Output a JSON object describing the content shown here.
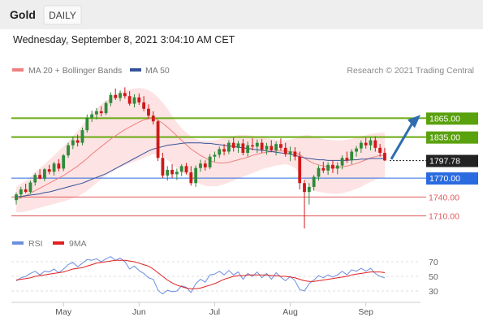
{
  "header": {
    "instrument": "Gold",
    "timeframe": "DAILY",
    "timestamp": "Wednesday, September 8, 2021 3:04:10 AM CET"
  },
  "legend": {
    "ma20": "MA 20 + Bollinger Bands",
    "ma50": "MA 50",
    "credit": "Research © 2021 Trading Central"
  },
  "rsi_legend": {
    "rsi": "RSI",
    "ma": "9MA"
  },
  "colors": {
    "bull_candle": "#2e8b3a",
    "bear_candle": "#d01818",
    "ma20": "#f08080",
    "bollinger_fill": "#fde3e3",
    "ma50": "#34539a",
    "resistance": "#6aaa12",
    "current_line": "#333333",
    "support_blue": "#2a6be0",
    "support_red": "#e05a5a",
    "arrow": "#2f6db0",
    "rsi_line": "#6b8fe0",
    "rsi_ma": "#e02020"
  },
  "chart_data": [
    {
      "type": "candlestick",
      "title": "Gold",
      "timeframe": "DAILY",
      "ylim": [
        1685,
        1930
      ],
      "x_tick_labels": [
        "May",
        "Jun",
        "Jul",
        "Aug",
        "Sep"
      ],
      "ohlc": [
        [
          1735,
          1747,
          1728,
          1744
        ],
        [
          1744,
          1756,
          1738,
          1752
        ],
        [
          1752,
          1761,
          1746,
          1748
        ],
        [
          1748,
          1766,
          1745,
          1763
        ],
        [
          1763,
          1778,
          1758,
          1775
        ],
        [
          1775,
          1784,
          1768,
          1769
        ],
        [
          1769,
          1786,
          1765,
          1784
        ],
        [
          1784,
          1791,
          1776,
          1780
        ],
        [
          1780,
          1796,
          1774,
          1793
        ],
        [
          1793,
          1800,
          1781,
          1785
        ],
        [
          1785,
          1808,
          1781,
          1806
        ],
        [
          1806,
          1826,
          1802,
          1822
        ],
        [
          1822,
          1836,
          1816,
          1830
        ],
        [
          1830,
          1839,
          1820,
          1826
        ],
        [
          1826,
          1850,
          1822,
          1846
        ],
        [
          1846,
          1871,
          1842,
          1866
        ],
        [
          1866,
          1877,
          1859,
          1871
        ],
        [
          1871,
          1881,
          1863,
          1876
        ],
        [
          1876,
          1884,
          1868,
          1873
        ],
        [
          1873,
          1892,
          1870,
          1889
        ],
        [
          1889,
          1906,
          1884,
          1902
        ],
        [
          1902,
          1912,
          1894,
          1897
        ],
        [
          1897,
          1909,
          1892,
          1905
        ],
        [
          1905,
          1914,
          1896,
          1900
        ],
        [
          1900,
          1908,
          1885,
          1888
        ],
        [
          1888,
          1903,
          1882,
          1898
        ],
        [
          1898,
          1904,
          1886,
          1890
        ],
        [
          1890,
          1900,
          1876,
          1880
        ],
        [
          1880,
          1887,
          1864,
          1869
        ],
        [
          1869,
          1876,
          1855,
          1860
        ],
        [
          1860,
          1862,
          1797,
          1802
        ],
        [
          1802,
          1810,
          1770,
          1774
        ],
        [
          1774,
          1789,
          1766,
          1783
        ],
        [
          1783,
          1792,
          1770,
          1776
        ],
        [
          1776,
          1785,
          1767,
          1780
        ],
        [
          1780,
          1792,
          1773,
          1789
        ],
        [
          1789,
          1794,
          1776,
          1779
        ],
        [
          1779,
          1789,
          1758,
          1762
        ],
        [
          1762,
          1790,
          1756,
          1786
        ],
        [
          1786,
          1799,
          1780,
          1793
        ],
        [
          1793,
          1798,
          1782,
          1787
        ],
        [
          1787,
          1808,
          1784,
          1804
        ],
        [
          1804,
          1812,
          1796,
          1807
        ],
        [
          1807,
          1820,
          1802,
          1816
        ],
        [
          1816,
          1824,
          1806,
          1812
        ],
        [
          1812,
          1830,
          1808,
          1826
        ],
        [
          1826,
          1834,
          1812,
          1818
        ],
        [
          1818,
          1829,
          1810,
          1825
        ],
        [
          1825,
          1832,
          1806,
          1810
        ],
        [
          1810,
          1828,
          1804,
          1822
        ],
        [
          1822,
          1833,
          1814,
          1820
        ],
        [
          1820,
          1831,
          1810,
          1826
        ],
        [
          1826,
          1832,
          1810,
          1815
        ],
        [
          1815,
          1826,
          1807,
          1821
        ],
        [
          1821,
          1830,
          1811,
          1814
        ],
        [
          1814,
          1828,
          1806,
          1824
        ],
        [
          1824,
          1833,
          1814,
          1818
        ],
        [
          1818,
          1826,
          1804,
          1808
        ],
        [
          1808,
          1820,
          1797,
          1812
        ],
        [
          1812,
          1819,
          1798,
          1804
        ],
        [
          1804,
          1812,
          1752,
          1762
        ],
        [
          1762,
          1767,
          1690,
          1748
        ],
        [
          1748,
          1762,
          1728,
          1756
        ],
        [
          1756,
          1775,
          1750,
          1772
        ],
        [
          1772,
          1790,
          1766,
          1786
        ],
        [
          1786,
          1796,
          1778,
          1782
        ],
        [
          1782,
          1795,
          1775,
          1791
        ],
        [
          1791,
          1798,
          1778,
          1785
        ],
        [
          1785,
          1795,
          1776,
          1790
        ],
        [
          1790,
          1806,
          1784,
          1802
        ],
        [
          1802,
          1812,
          1794,
          1798
        ],
        [
          1798,
          1816,
          1792,
          1812
        ],
        [
          1812,
          1821,
          1804,
          1817
        ],
        [
          1817,
          1830,
          1810,
          1826
        ],
        [
          1826,
          1834,
          1817,
          1822
        ],
        [
          1822,
          1834,
          1814,
          1830
        ],
        [
          1830,
          1836,
          1812,
          1818
        ],
        [
          1818,
          1824,
          1804,
          1810
        ],
        [
          1810,
          1818,
          1797,
          1798
        ]
      ],
      "ma20": [
        1736,
        1739,
        1742,
        1746,
        1750,
        1754,
        1758,
        1762,
        1766,
        1770,
        1774,
        1779,
        1784,
        1789,
        1795,
        1801,
        1808,
        1814,
        1820,
        1826,
        1832,
        1837,
        1842,
        1847,
        1851,
        1855,
        1859,
        1862,
        1864,
        1865,
        1862,
        1857,
        1851,
        1844,
        1837,
        1830,
        1823,
        1816,
        1811,
        1806,
        1802,
        1798,
        1795,
        1794,
        1794,
        1795,
        1797,
        1799,
        1801,
        1803,
        1806,
        1808,
        1810,
        1811,
        1812,
        1813,
        1813,
        1813,
        1812,
        1811,
        1807,
        1802,
        1797,
        1793,
        1791,
        1789,
        1788,
        1787,
        1787,
        1788,
        1789,
        1791,
        1793,
        1796,
        1799,
        1802,
        1804,
        1806,
        1806
      ],
      "bollinger_upper": [
        1756,
        1761,
        1766,
        1772,
        1779,
        1786,
        1792,
        1799,
        1806,
        1813,
        1820,
        1828,
        1836,
        1845,
        1854,
        1863,
        1872,
        1880,
        1887,
        1893,
        1898,
        1902,
        1906,
        1909,
        1911,
        1912,
        1913,
        1912,
        1909,
        1905,
        1898,
        1890,
        1880,
        1869,
        1858,
        1849,
        1842,
        1836,
        1832,
        1830,
        1829,
        1829,
        1830,
        1832,
        1834,
        1836,
        1837,
        1838,
        1838,
        1838,
        1837,
        1836,
        1835,
        1833,
        1832,
        1831,
        1830,
        1830,
        1831,
        1833,
        1836,
        1838,
        1838,
        1836,
        1834,
        1832,
        1831,
        1830,
        1830,
        1830,
        1831,
        1832,
        1834,
        1836,
        1838,
        1840,
        1841,
        1842,
        1842
      ],
      "bollinger_lower": [
        1716,
        1716,
        1717,
        1719,
        1721,
        1723,
        1725,
        1727,
        1729,
        1731,
        1733,
        1735,
        1738,
        1741,
        1745,
        1750,
        1756,
        1762,
        1768,
        1774,
        1779,
        1783,
        1787,
        1790,
        1793,
        1796,
        1799,
        1802,
        1805,
        1808,
        1808,
        1805,
        1799,
        1792,
        1786,
        1780,
        1774,
        1768,
        1764,
        1760,
        1758,
        1757,
        1757,
        1758,
        1760,
        1763,
        1766,
        1769,
        1772,
        1775,
        1778,
        1781,
        1784,
        1786,
        1788,
        1790,
        1791,
        1792,
        1790,
        1786,
        1778,
        1766,
        1756,
        1750,
        1748,
        1747,
        1746,
        1745,
        1745,
        1746,
        1748,
        1750,
        1753,
        1756,
        1760,
        1764,
        1767,
        1770,
        1771
      ],
      "ma50": [
        1740,
        1741,
        1742,
        1743,
        1744,
        1745,
        1747,
        1748,
        1750,
        1752,
        1754,
        1756,
        1758,
        1760,
        1762,
        1765,
        1768,
        1771,
        1774,
        1777,
        1781,
        1785,
        1789,
        1793,
        1797,
        1801,
        1805,
        1809,
        1813,
        1816,
        1818,
        1820,
        1822,
        1823,
        1824,
        1825,
        1826,
        1826,
        1826,
        1826,
        1825,
        1825,
        1824,
        1823,
        1822,
        1821,
        1820,
        1819,
        1818,
        1817,
        1816,
        1815,
        1814,
        1813,
        1812,
        1811,
        1810,
        1809,
        1808,
        1806,
        1804,
        1802,
        1801,
        1800,
        1799,
        1799,
        1798,
        1798,
        1798,
        1798,
        1798,
        1799,
        1799,
        1800,
        1800,
        1801,
        1801,
        1801,
        1801
      ],
      "levels": [
        {
          "value": 1865,
          "label": "1865.00",
          "kind": "resistance"
        },
        {
          "value": 1835,
          "label": "1835.00",
          "kind": "resistance"
        },
        {
          "value": 1797.78,
          "label": "1797.78",
          "kind": "current"
        },
        {
          "value": 1770,
          "label": "1770.00",
          "kind": "pivot"
        },
        {
          "value": 1740,
          "label": "1740.00",
          "kind": "support"
        },
        {
          "value": 1710,
          "label": "1710.00",
          "kind": "support"
        }
      ],
      "forecast_arrow": {
        "from": 1800,
        "to": 1865
      }
    },
    {
      "type": "line",
      "title": "RSI",
      "ylim": [
        20,
        80
      ],
      "y_ticks": [
        70,
        50,
        30
      ],
      "series": [
        {
          "name": "RSI",
          "values": [
            44,
            48,
            50,
            54,
            57,
            52,
            57,
            56,
            60,
            55,
            60,
            66,
            69,
            63,
            68,
            73,
            72,
            74,
            70,
            74,
            77,
            72,
            75,
            70,
            60,
            64,
            58,
            54,
            48,
            46,
            31,
            26,
            31,
            29,
            30,
            37,
            35,
            28,
            40,
            46,
            42,
            52,
            53,
            57,
            52,
            58,
            52,
            56,
            46,
            54,
            50,
            56,
            48,
            54,
            46,
            55,
            49,
            44,
            50,
            44,
            32,
            30,
            40,
            45,
            51,
            48,
            52,
            49,
            52,
            57,
            52,
            59,
            57,
            61,
            57,
            61,
            54,
            50,
            48
          ]
        },
        {
          "name": "9MA",
          "values": [
            45,
            46,
            47,
            48,
            50,
            51,
            52,
            53,
            54,
            55,
            56,
            58,
            60,
            61,
            62,
            64,
            66,
            68,
            69,
            70,
            71,
            72,
            72,
            72,
            71,
            70,
            68,
            66,
            64,
            60,
            55,
            50,
            45,
            41,
            38,
            36,
            34,
            33,
            33,
            34,
            36,
            38,
            40,
            43,
            46,
            48,
            50,
            51,
            51,
            52,
            52,
            52,
            52,
            52,
            51,
            51,
            50,
            50,
            49,
            48,
            46,
            44,
            43,
            43,
            44,
            45,
            46,
            47,
            48,
            49,
            50,
            52,
            53,
            54,
            55,
            56,
            56,
            56,
            55
          ]
        }
      ]
    }
  ]
}
